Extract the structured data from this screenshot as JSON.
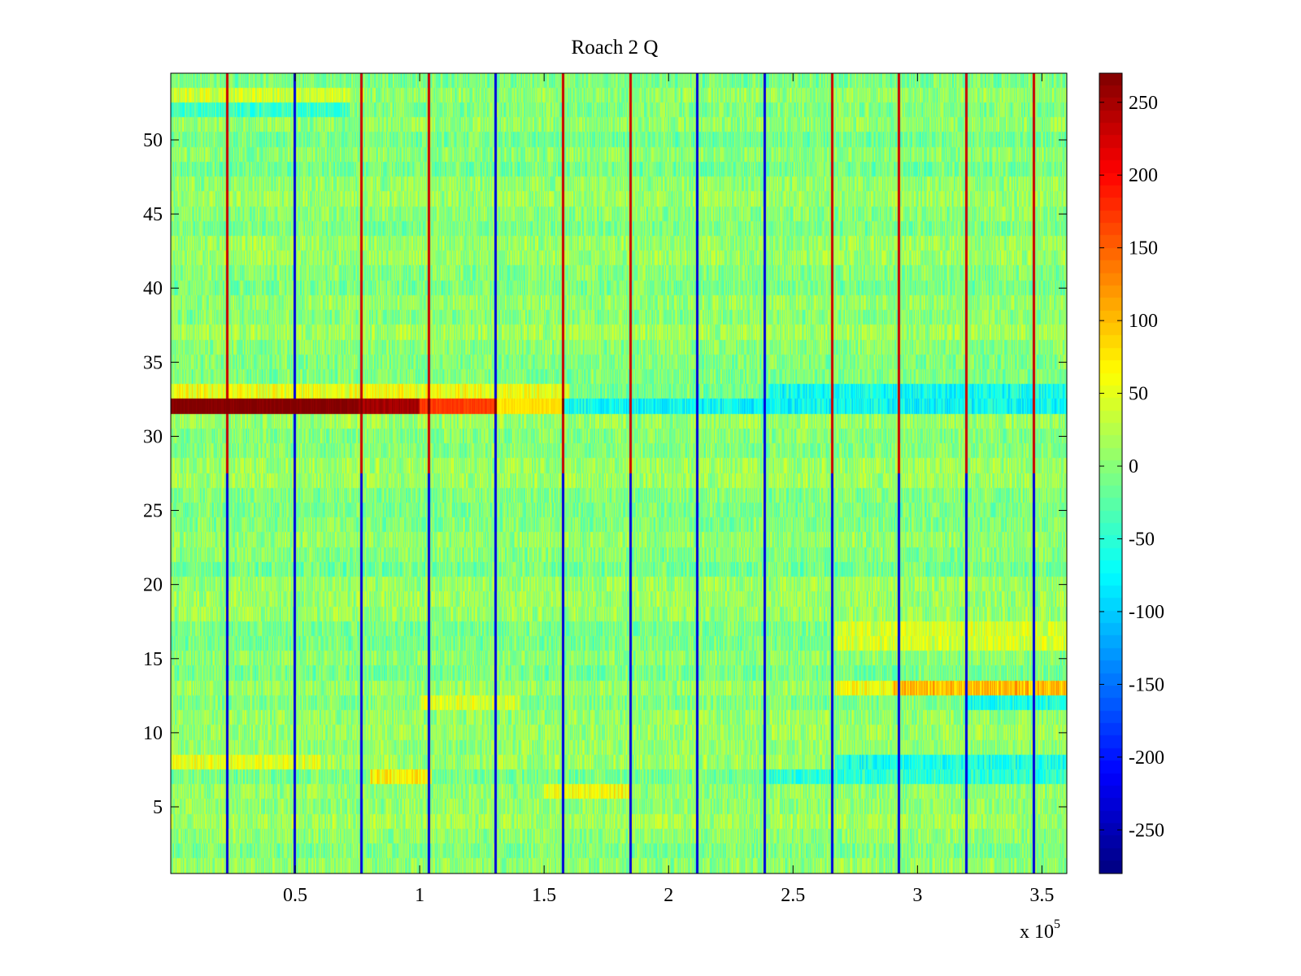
{
  "chart_data": {
    "type": "heatmap",
    "title": "Roach 2 Q",
    "xlabel": "",
    "ylabel": "",
    "x_multiplier_label": "x 10",
    "x_multiplier_exponent": "5",
    "xlim": [
      0,
      360000
    ],
    "ylim": [
      0.5,
      54.5
    ],
    "clim": [
      -280,
      270
    ],
    "colormap": "jet",
    "rows": 54,
    "xticks": [
      {
        "value": 50000,
        "label": "0.5"
      },
      {
        "value": 100000,
        "label": "1"
      },
      {
        "value": 150000,
        "label": "1.5"
      },
      {
        "value": 200000,
        "label": "2"
      },
      {
        "value": 250000,
        "label": "2.5"
      },
      {
        "value": 300000,
        "label": "3"
      },
      {
        "value": 350000,
        "label": "3.5"
      }
    ],
    "yticks": [
      {
        "value": 5,
        "label": "5"
      },
      {
        "value": 10,
        "label": "10"
      },
      {
        "value": 15,
        "label": "15"
      },
      {
        "value": 20,
        "label": "20"
      },
      {
        "value": 25,
        "label": "25"
      },
      {
        "value": 30,
        "label": "30"
      },
      {
        "value": 35,
        "label": "35"
      },
      {
        "value": 40,
        "label": "40"
      },
      {
        "value": 45,
        "label": "45"
      },
      {
        "value": 50,
        "label": "50"
      }
    ],
    "colorbar_ticks": [
      {
        "value": 250,
        "label": "250"
      },
      {
        "value": 200,
        "label": "200"
      },
      {
        "value": 150,
        "label": "150"
      },
      {
        "value": 100,
        "label": "100"
      },
      {
        "value": 50,
        "label": "50"
      },
      {
        "value": 0,
        "label": "0"
      },
      {
        "value": -50,
        "label": "-50"
      },
      {
        "value": -100,
        "label": "-100"
      },
      {
        "value": -150,
        "label": "-150"
      },
      {
        "value": -200,
        "label": "-200"
      },
      {
        "value": -250,
        "label": "-250"
      }
    ],
    "background_mean": 0,
    "noise_amplitude": 35,
    "vertical_artifacts": [
      {
        "x": 22500,
        "upper": "red",
        "lower": "blue"
      },
      {
        "x": 49500,
        "upper": "blue",
        "lower": "blue"
      },
      {
        "x": 76500,
        "upper": "red",
        "lower": "blue"
      },
      {
        "x": 103500,
        "upper": "red",
        "lower": "blue"
      },
      {
        "x": 130500,
        "upper": "blue",
        "lower": "blue"
      },
      {
        "x": 157500,
        "upper": "red",
        "lower": "blue"
      },
      {
        "x": 184500,
        "upper": "red",
        "lower": "blue"
      },
      {
        "x": 211500,
        "upper": "blue",
        "lower": "blue"
      },
      {
        "x": 238500,
        "upper": "blue",
        "lower": "blue"
      },
      {
        "x": 265500,
        "upper": "red",
        "lower": "blue"
      },
      {
        "x": 292500,
        "upper": "red",
        "lower": "blue"
      },
      {
        "x": 319500,
        "upper": "red",
        "lower": "blue"
      },
      {
        "x": 346500,
        "upper": "red",
        "lower": "blue"
      }
    ],
    "row_features": [
      {
        "row": 32,
        "x_start": 0,
        "x_end": 75000,
        "value": 270
      },
      {
        "row": 32,
        "x_start": 75000,
        "x_end": 100000,
        "value": 250
      },
      {
        "row": 32,
        "x_start": 100000,
        "x_end": 130000,
        "value": 170
      },
      {
        "row": 32,
        "x_start": 130000,
        "x_end": 158000,
        "value": 80
      },
      {
        "row": 32,
        "x_start": 158000,
        "x_end": 360000,
        "value": -70
      },
      {
        "row": 33,
        "x_start": 0,
        "x_end": 160000,
        "value": 55
      },
      {
        "row": 33,
        "x_start": 240000,
        "x_end": 360000,
        "value": -65
      },
      {
        "row": 53,
        "x_start": 0,
        "x_end": 72000,
        "value": 40
      },
      {
        "row": 52,
        "x_start": 0,
        "x_end": 72000,
        "value": -40
      },
      {
        "row": 13,
        "x_start": 267000,
        "x_end": 290000,
        "value": 60
      },
      {
        "row": 13,
        "x_start": 290000,
        "x_end": 360000,
        "value": 100
      },
      {
        "row": 12,
        "x_start": 100000,
        "x_end": 140000,
        "value": 45
      },
      {
        "row": 12,
        "x_start": 320000,
        "x_end": 360000,
        "value": -60
      },
      {
        "row": 8,
        "x_start": 0,
        "x_end": 60000,
        "value": 50
      },
      {
        "row": 8,
        "x_start": 267000,
        "x_end": 360000,
        "value": -60
      },
      {
        "row": 7,
        "x_start": 80000,
        "x_end": 105000,
        "value": 70
      },
      {
        "row": 7,
        "x_start": 240000,
        "x_end": 360000,
        "value": -50
      },
      {
        "row": 6,
        "x_start": 150000,
        "x_end": 185000,
        "value": 60
      },
      {
        "row": 16,
        "x_start": 267000,
        "x_end": 360000,
        "value": 40
      },
      {
        "row": 17,
        "x_start": 267000,
        "x_end": 360000,
        "value": 40
      }
    ]
  }
}
